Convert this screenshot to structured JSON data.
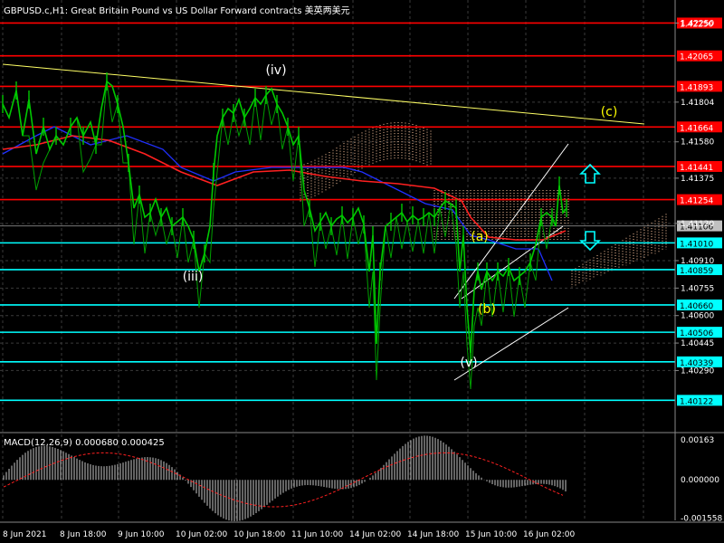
{
  "window": {
    "title": "GBPUSD.c,H1: Great Britain Pound vs US Dollar Forward contracts 美英两美元"
  },
  "colors": {
    "background": "#000000",
    "grid": "#3a3a3a",
    "price_line": "#00c800",
    "resistance": "#ff0000",
    "support": "#00ffff",
    "trendline": "#ffff66",
    "channel": "#ffffff",
    "ma_red": "#ff2020",
    "ma_blue": "#0000ff",
    "cloud": "#ffc8a0"
  },
  "price_axis": {
    "ticks": [
      "1.42250",
      "1.41804",
      "1.41580",
      "1.41375",
      "1.41120",
      "1.40910",
      "1.40755",
      "1.40600",
      "1.40445",
      "1.40290"
    ],
    "range": [
      1.3994,
      1.4238
    ]
  },
  "levels": {
    "resistance": [
      "1.42250",
      "1.42065",
      "1.41893",
      "1.41664",
      "1.41441",
      "1.41254"
    ],
    "support": [
      "1.41010",
      "1.40859",
      "1.40660",
      "1.40506",
      "1.40339",
      "1.40122"
    ],
    "current_price": "1.41106"
  },
  "wave_labels": [
    "(iv)",
    "(iii)",
    "(a)",
    "(b)",
    "(v)",
    "(c)"
  ],
  "time_axis": {
    "labels": [
      "8 Jun 2021",
      "8 Jun 18:00",
      "9 Jun 10:00",
      "10 Jun 02:00",
      "10 Jun 18:00",
      "11 Jun 10:00",
      "14 Jun 02:00",
      "14 Jun 18:00",
      "15 Jun 10:00",
      "16 Jun 02:00"
    ]
  },
  "macd": {
    "title": "MACD(12,26,9) 0.000680 0.000425",
    "ticks": [
      "0.00163",
      "0.000000",
      "-0.001558"
    ],
    "range": [
      -0.00165,
      0.00185
    ]
  },
  "arrows": [
    "up",
    "down"
  ]
}
